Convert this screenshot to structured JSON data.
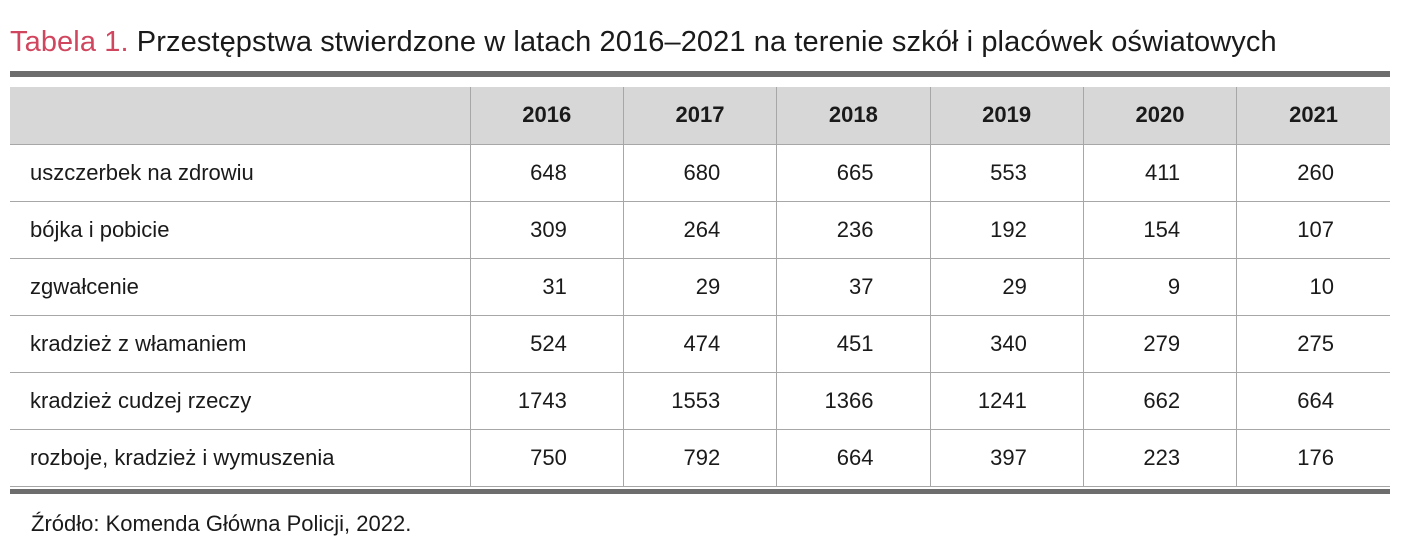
{
  "title": {
    "label": "Tabela 1.",
    "text": "Przestępstwa stwierdzone w latach 2016–2021 na terenie szkół i placówek oświatowych"
  },
  "table": {
    "header": [
      "",
      "2016",
      "2017",
      "2018",
      "2019",
      "2020",
      "2021"
    ],
    "rows": [
      {
        "label": "uszczerbek na zdrowiu",
        "values": [
          "648",
          "680",
          "665",
          "553",
          "411",
          "260"
        ]
      },
      {
        "label": "bójka i pobicie",
        "values": [
          "309",
          "264",
          "236",
          "192",
          "154",
          "107"
        ]
      },
      {
        "label": "zgwałcenie",
        "values": [
          "31",
          "29",
          "37",
          "29",
          "9",
          "10"
        ]
      },
      {
        "label": "kradzież z włamaniem",
        "values": [
          "524",
          "474",
          "451",
          "340",
          "279",
          "275"
        ]
      },
      {
        "label": "kradzież cudzej rzeczy",
        "values": [
          "1743",
          "1553",
          "1366",
          "1241",
          "662",
          "664"
        ]
      },
      {
        "label": "rozboje, kradzież i wymuszenia",
        "values": [
          "750",
          "792",
          "664",
          "397",
          "223",
          "176"
        ]
      }
    ]
  },
  "source": "Źródło: Komenda Główna Policji, 2022.",
  "colors": {
    "title_label": "#d1465f",
    "header_background": "#d7d7d7",
    "rule": "#6d6d6d",
    "grid": "#a7a7a7"
  }
}
